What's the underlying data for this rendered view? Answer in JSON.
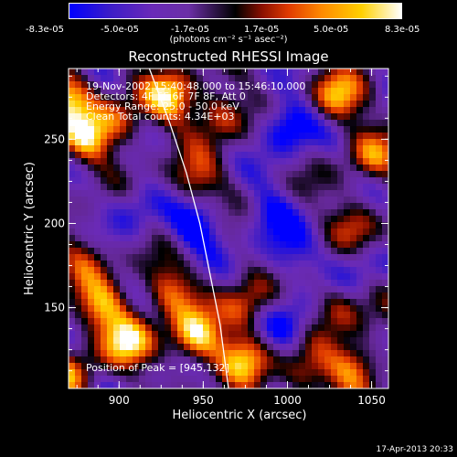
{
  "colorbar": {
    "ticks": [
      "-8.3e-05",
      "-5.0e-05",
      "-1.7e-05",
      "1.7e-05",
      "5.0e-05",
      "8.3e-05"
    ],
    "units": "(photons cm⁻² s⁻¹ asec⁻²)"
  },
  "title": "Reconstructed RHESSI Image",
  "annotations": [
    "19-Nov-2002 15:40:48.000 to 15:46:10.000",
    "Detectors: 4F 5F 6F 7F 8F, Att 0",
    "Energy Range: 25.0 - 50.0 keV",
    "Clean    Total counts: 4.34E+03"
  ],
  "peak_label": "Position of Peak = [945,132]",
  "footer": "17-Apr-2013 20:33",
  "chart_data": {
    "type": "heatmap",
    "title": "Reconstructed RHESSI Image",
    "xlabel": "Heliocentric X (arcsec)",
    "ylabel": "Heliocentric Y (arcsec)",
    "xlim": [
      870,
      1060
    ],
    "ylim": [
      102,
      292
    ],
    "xticks": [
      900,
      950,
      1000,
      1050
    ],
    "yticks": [
      150,
      200,
      250
    ],
    "color_range": [
      -8.3e-05,
      8.3e-05
    ],
    "peak": [
      945,
      132
    ],
    "limb_curve": [
      [
        918,
        292
      ],
      [
        930,
        260
      ],
      [
        940,
        230
      ],
      [
        948,
        200
      ],
      [
        954,
        170
      ],
      [
        960,
        140
      ],
      [
        965,
        102
      ]
    ],
    "sources": [
      {
        "x": 870,
        "y": 275,
        "level": 0.9
      },
      {
        "x": 880,
        "y": 250,
        "level": 0.8
      },
      {
        "x": 900,
        "y": 260,
        "level": 0.6
      },
      {
        "x": 930,
        "y": 275,
        "level": 0.9
      },
      {
        "x": 960,
        "y": 265,
        "level": 0.7
      },
      {
        "x": 945,
        "y": 225,
        "level": 0.6
      },
      {
        "x": 1030,
        "y": 275,
        "level": 0.8
      },
      {
        "x": 1050,
        "y": 240,
        "level": 0.6
      },
      {
        "x": 1040,
        "y": 200,
        "level": 0.5
      },
      {
        "x": 880,
        "y": 180,
        "level": 0.5
      },
      {
        "x": 890,
        "y": 150,
        "level": 0.8
      },
      {
        "x": 905,
        "y": 130,
        "level": 0.9
      },
      {
        "x": 945,
        "y": 132,
        "level": 1.0
      },
      {
        "x": 930,
        "y": 160,
        "level": 0.7
      },
      {
        "x": 975,
        "y": 150,
        "level": 0.7
      },
      {
        "x": 975,
        "y": 120,
        "level": 0.8
      },
      {
        "x": 1030,
        "y": 150,
        "level": 0.6
      },
      {
        "x": 1040,
        "y": 115,
        "level": 0.8
      },
      {
        "x": 1010,
        "y": 110,
        "level": 0.6
      },
      {
        "x": 870,
        "y": 110,
        "level": 0.7
      },
      {
        "x": 1000,
        "y": 258,
        "level": -0.8
      },
      {
        "x": 945,
        "y": 198,
        "level": -0.7
      },
      {
        "x": 990,
        "y": 205,
        "level": -0.5
      },
      {
        "x": 1000,
        "y": 140,
        "level": -0.6
      },
      {
        "x": 1000,
        "y": 180,
        "level": -0.4
      },
      {
        "x": 1040,
        "y": 175,
        "level": -0.4
      },
      {
        "x": 910,
        "y": 210,
        "level": -0.4
      }
    ]
  }
}
